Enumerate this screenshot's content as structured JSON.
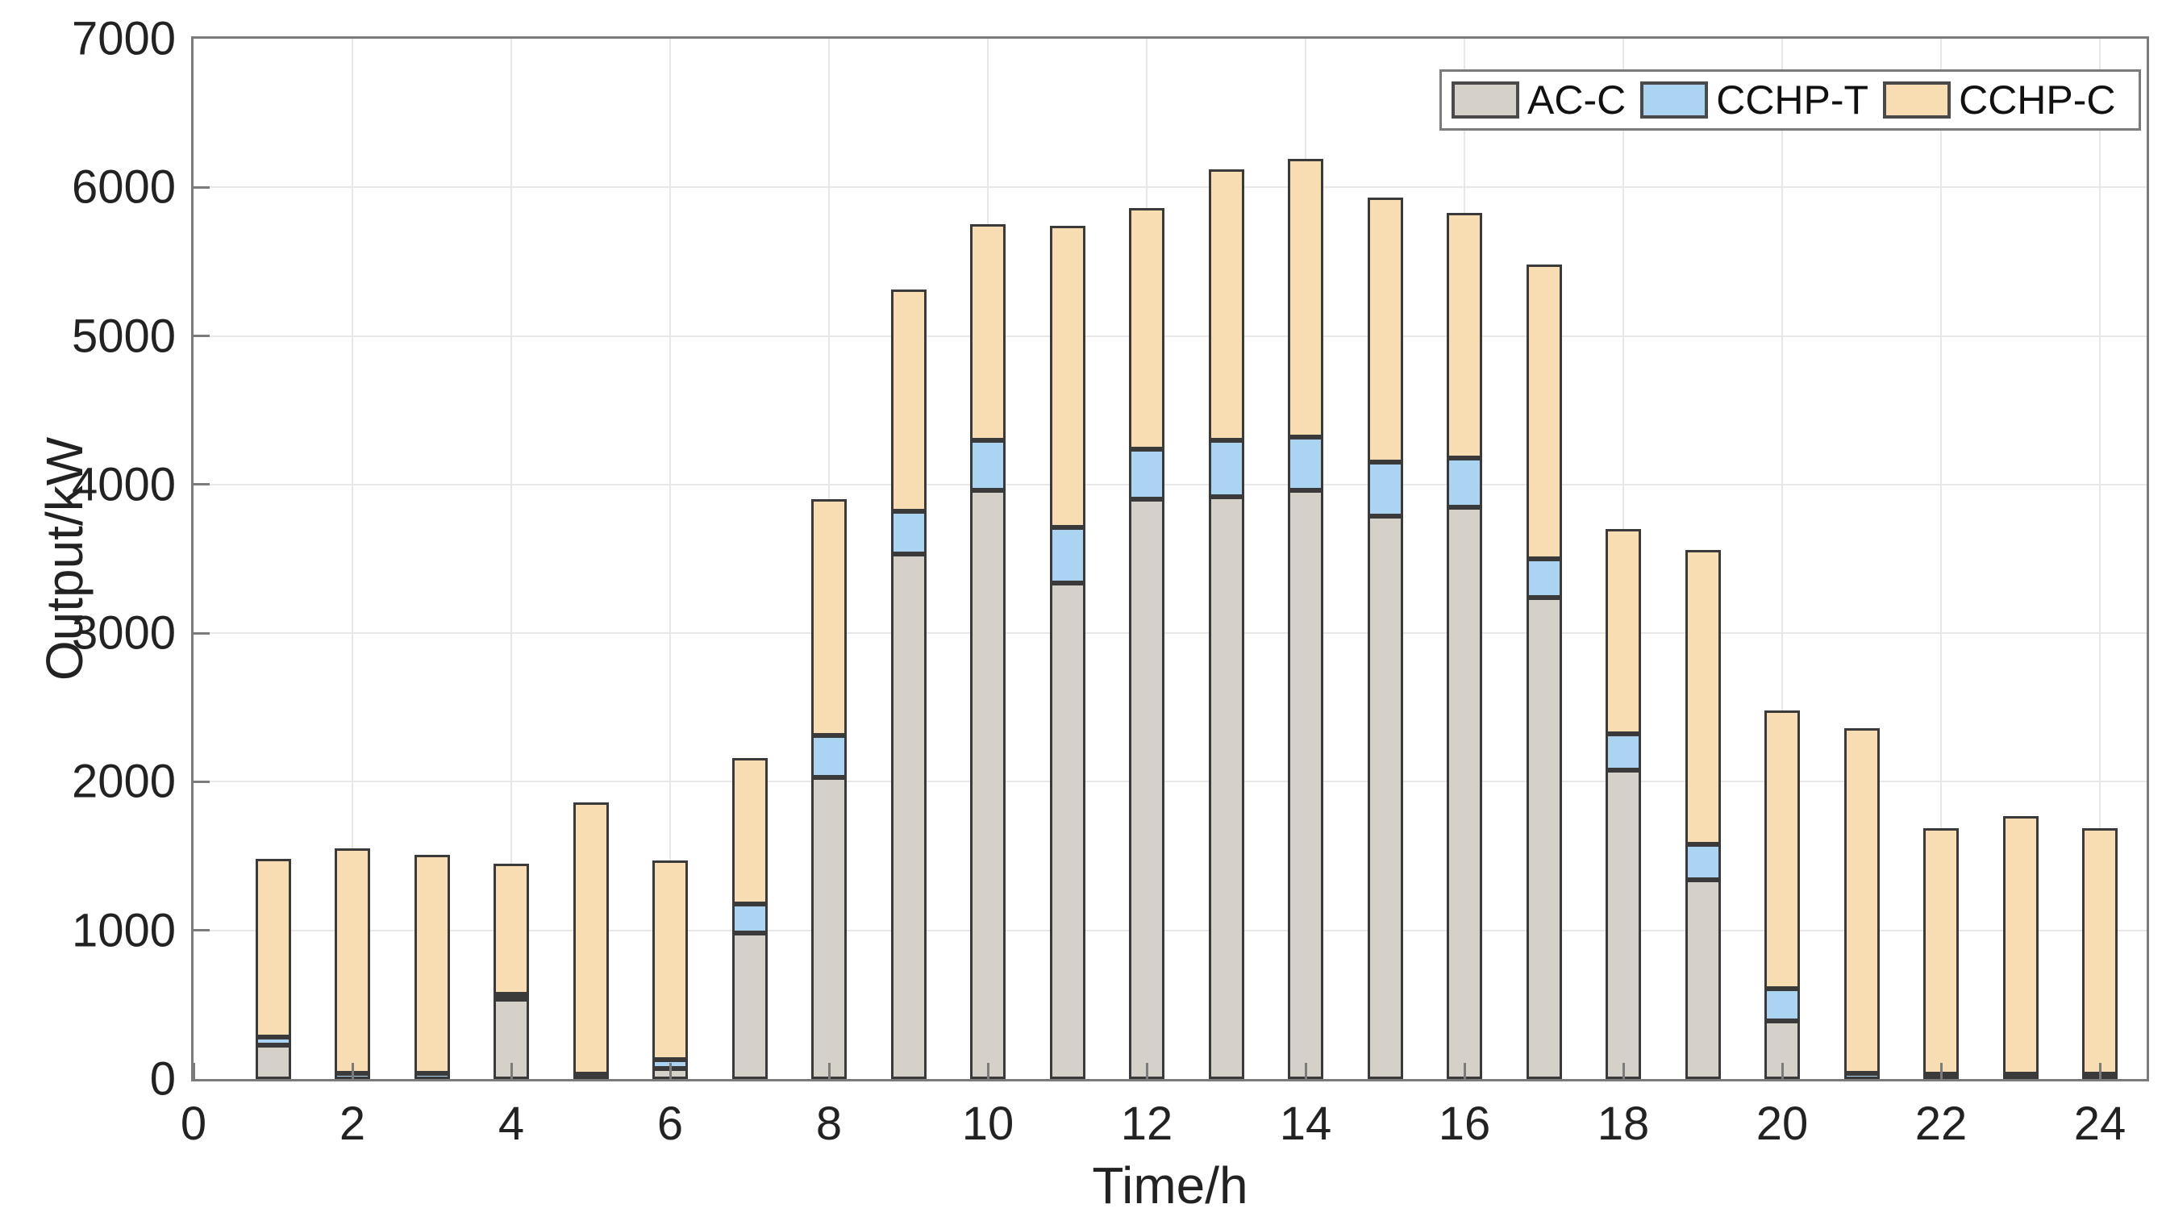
{
  "chart_data": {
    "type": "bar",
    "stacked": true,
    "title": "",
    "xlabel": "Time/h",
    "ylabel": "Output/kW",
    "x": [
      1,
      2,
      3,
      4,
      5,
      6,
      7,
      8,
      9,
      10,
      11,
      12,
      13,
      14,
      15,
      16,
      17,
      18,
      19,
      20,
      21,
      22,
      23,
      24
    ],
    "series": [
      {
        "name": "AC-C",
        "color": "#d6d1c8",
        "values": [
          230,
          0,
          0,
          540,
          0,
          70,
          980,
          2030,
          3530,
          3960,
          3340,
          3900,
          3920,
          3960,
          3790,
          3850,
          3240,
          2080,
          1340,
          390,
          0,
          0,
          0,
          0
        ]
      },
      {
        "name": "CCHP-T",
        "color": "#abd4f2",
        "values": [
          50,
          40,
          40,
          30,
          30,
          60,
          200,
          280,
          290,
          340,
          370,
          340,
          380,
          360,
          360,
          330,
          260,
          240,
          240,
          220,
          40,
          30,
          30,
          30
        ]
      },
      {
        "name": "CCHP-C",
        "color": "#f8dcb2",
        "values": [
          1200,
          1510,
          1470,
          880,
          1830,
          1340,
          980,
          1590,
          1490,
          1450,
          2030,
          1620,
          1820,
          1870,
          1780,
          1650,
          1980,
          1380,
          1980,
          1870,
          2320,
          1660,
          1740,
          1660
        ]
      }
    ],
    "totals": [
      1480,
      1550,
      1510,
      1450,
      1860,
      1470,
      2160,
      3900,
      5310,
      5750,
      5740,
      5860,
      6120,
      6190,
      5930,
      5830,
      5480,
      3700,
      3560,
      2480,
      2360,
      1690,
      1770,
      1690
    ],
    "ylim": [
      0,
      7000
    ],
    "xlim": [
      0,
      24.6
    ],
    "yticks": [
      0,
      1000,
      2000,
      3000,
      4000,
      5000,
      6000,
      7000
    ],
    "xticks": [
      0,
      2,
      4,
      6,
      8,
      10,
      12,
      14,
      16,
      18,
      20,
      22,
      24
    ],
    "grid": true,
    "legend_position": "top-right",
    "bar_edge_color": "#3a3a3a",
    "axis_color": "#7b7b7b",
    "grid_color": "#e8e8e8"
  },
  "legend": {
    "items": [
      {
        "label": "AC-C"
      },
      {
        "label": "CCHP-T"
      },
      {
        "label": "CCHP-C"
      }
    ]
  }
}
